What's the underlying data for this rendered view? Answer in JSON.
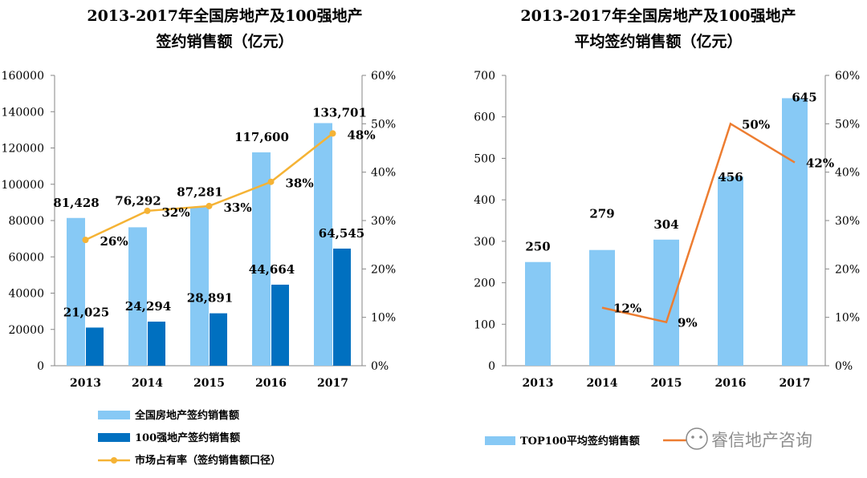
{
  "chart_data": [
    {
      "type": "bar",
      "title_line1": "2013-2017年全国房地产及100强地产",
      "title_line2": "签约销售额（亿元）",
      "categories": [
        "2013",
        "2014",
        "2015",
        "2016",
        "2017"
      ],
      "ylim": [
        0,
        160000
      ],
      "yticks": [
        "0",
        "20000",
        "40000",
        "60000",
        "80000",
        "100000",
        "120000",
        "140000",
        "160000"
      ],
      "y2lim": [
        0,
        60
      ],
      "y2ticks": [
        "0%",
        "10%",
        "20%",
        "30%",
        "40%",
        "50%",
        "60%"
      ],
      "series": [
        {
          "name": "全国房地产签约销售额",
          "values": [
            81428,
            76292,
            87281,
            117600,
            133701
          ],
          "labels": [
            "81,428",
            "76,292",
            "87,281",
            "117,600",
            "133,701"
          ],
          "color": "#87C9F5"
        },
        {
          "name": "100强地产签约销售额",
          "values": [
            21025,
            24294,
            28891,
            44664,
            64545
          ],
          "labels": [
            "21,025",
            "24,294",
            "28,891",
            "44,664",
            "64,545"
          ],
          "color": "#0070C0"
        },
        {
          "name": "市场占有率（签约销售额口径）",
          "values": [
            26,
            32,
            33,
            38,
            48
          ],
          "labels": [
            "26%",
            "32%",
            "33%",
            "38%",
            "48%"
          ],
          "color": "#F5B335",
          "axis": "right"
        }
      ],
      "legend_position": "bottom"
    },
    {
      "type": "bar",
      "title_line1": "2013-2017年全国房地产及100强地产",
      "title_line2": "平均签约销售额（亿元）",
      "categories": [
        "2013",
        "2014",
        "2015",
        "2016",
        "2017"
      ],
      "ylim": [
        0,
        700
      ],
      "yticks": [
        "0",
        "100",
        "200",
        "300",
        "400",
        "500",
        "600",
        "700"
      ],
      "y2lim": [
        0,
        60
      ],
      "y2ticks": [
        "0%",
        "10%",
        "20%",
        "30%",
        "40%",
        "50%",
        "60%"
      ],
      "series": [
        {
          "name": "TOP100平均签约销售额",
          "values": [
            250,
            279,
            304,
            456,
            645
          ],
          "labels": [
            "250",
            "279",
            "304",
            "456",
            "645"
          ],
          "color": "#87C9F5"
        },
        {
          "name": "",
          "values": [
            null,
            12,
            9,
            50,
            42
          ],
          "labels": [
            "",
            "12%",
            "9%",
            "50%",
            "42%"
          ],
          "color": "#ED7D31",
          "axis": "right"
        }
      ],
      "legend_position": "bottom"
    }
  ],
  "watermark": "睿信地产咨询"
}
